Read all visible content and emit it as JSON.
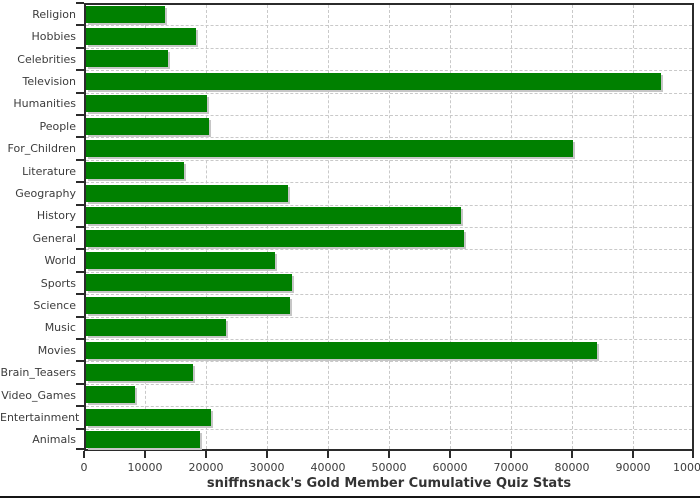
{
  "chart_data": {
    "type": "bar",
    "orientation": "horizontal",
    "title": "sniffnsnack's Gold Member Cumulative Quiz Stats",
    "categories": [
      "Religion",
      "Hobbies",
      "Celebrities",
      "Television",
      "Humanities",
      "People",
      "For_Children",
      "Literature",
      "Geography",
      "History",
      "General",
      "World",
      "Sports",
      "Science",
      "Music",
      "Movies",
      "Brain_Teasers",
      "Video_Games",
      "Entertainment",
      "Animals"
    ],
    "values": [
      12900,
      18000,
      13400,
      94300,
      19900,
      20200,
      79900,
      16100,
      33100,
      61500,
      62000,
      31000,
      33700,
      33400,
      22900,
      83700,
      17500,
      8100,
      20500,
      18700
    ],
    "xlim": [
      0,
      100000
    ],
    "x_ticks": [
      0,
      10000,
      20000,
      30000,
      40000,
      50000,
      60000,
      70000,
      80000,
      90000,
      100000
    ],
    "x_tick_labels": [
      "0",
      "10000",
      "20000",
      "30000",
      "40000",
      "50000",
      "60000",
      "70000",
      "80000",
      "90000",
      "100000"
    ],
    "grid": true,
    "legend": "none",
    "colors": {
      "bar": "#008000",
      "bar_shadow": "#c6c6c6",
      "gridline": "#c9c9c9",
      "axis": "#2b2b2b",
      "tick_label": "#3c3c3c",
      "title": "#333333",
      "background": "#ffffff",
      "bottom_rule": "#151515"
    }
  }
}
